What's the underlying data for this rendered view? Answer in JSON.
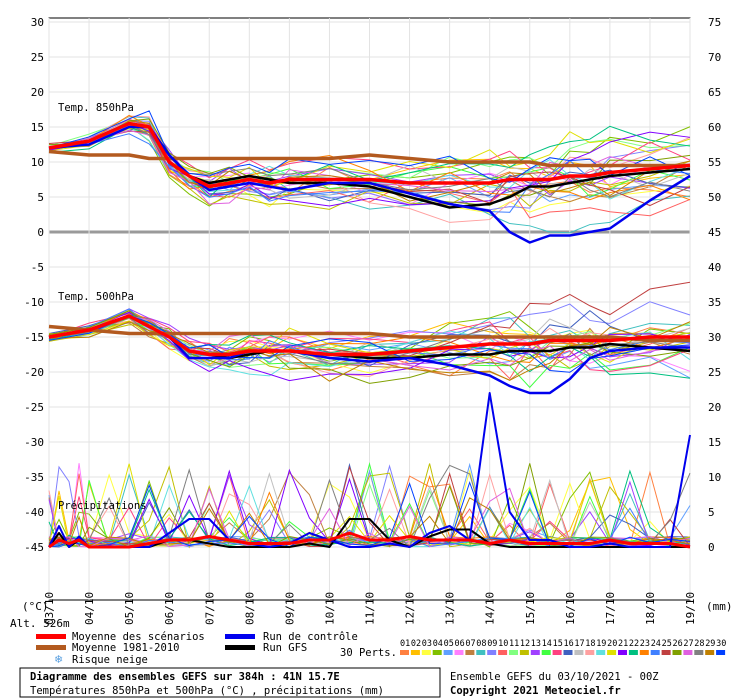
{
  "chart_data": {
    "type": "line",
    "unit_left": "(°C)",
    "unit_right": "(mm)",
    "left_ticks": [
      30,
      25,
      20,
      15,
      10,
      5,
      0,
      -5,
      -10,
      -15,
      -20,
      -25,
      -30,
      -35,
      -40,
      -45
    ],
    "right_ticks": [
      75,
      70,
      65,
      60,
      55,
      50,
      45,
      40,
      35,
      30,
      25,
      20,
      15,
      10,
      5,
      0
    ],
    "left_ylim": [
      -45,
      30
    ],
    "right_ylim": [
      0,
      75
    ],
    "x_range_hours": [
      0,
      384
    ],
    "date_labels": [
      "03/10",
      "04/10",
      "05/10",
      "06/10",
      "07/10",
      "08/10",
      "09/10",
      "10/10",
      "11/10",
      "12/10",
      "13/10",
      "14/10",
      "15/10",
      "16/10",
      "17/10",
      "18/10",
      "19/10"
    ],
    "panel_labels": {
      "t850": "Temp. 850hPa",
      "t500": "Temp. 500hPa",
      "precip": "Précipitations"
    },
    "alt_label": "Alt. 526m",
    "t850": {
      "x_hours": [
        0,
        24,
        48,
        60,
        72,
        84,
        96,
        108,
        120,
        132,
        144,
        168,
        192,
        216,
        240,
        264,
        276,
        288,
        300,
        312,
        324,
        336,
        360,
        384
      ],
      "mean_scenarios": [
        12,
        13,
        15.5,
        15,
        10,
        8,
        6.5,
        7,
        7.5,
        7,
        7.5,
        7.5,
        7.5,
        7,
        7,
        7,
        7.5,
        7.5,
        7.5,
        8,
        8,
        8.5,
        9,
        9.5
      ],
      "mean_1981_2010": [
        11.5,
        11,
        11,
        10.5,
        10.5,
        10.5,
        10.5,
        10.5,
        10.5,
        10.5,
        10.5,
        10.5,
        11,
        10.5,
        10,
        10,
        10,
        10,
        9.5,
        9.5,
        9.5,
        9.5,
        9.5,
        9.5
      ],
      "control_run": [
        12,
        12.5,
        15,
        15,
        11,
        8,
        6,
        6.5,
        7,
        6.5,
        6,
        7,
        7,
        5.5,
        4,
        3,
        0,
        -1.5,
        -0.5,
        -0.5,
        0,
        0.5,
        4.5,
        8
      ],
      "gfs_run": [
        12,
        13,
        15.5,
        15,
        11,
        8,
        7,
        7.5,
        8,
        7.5,
        7,
        7,
        6.5,
        5,
        3.5,
        4,
        5,
        6.5,
        6.5,
        7,
        7.5,
        8,
        8.5,
        9
      ]
    },
    "t500": {
      "x_hours": [
        0,
        24,
        48,
        60,
        72,
        84,
        96,
        108,
        120,
        132,
        144,
        168,
        192,
        216,
        240,
        264,
        276,
        288,
        300,
        312,
        324,
        336,
        360,
        384
      ],
      "mean_scenarios": [
        -15,
        -14,
        -12,
        -13.5,
        -15,
        -17,
        -17.5,
        -17.5,
        -17,
        -17,
        -17,
        -17.5,
        -17.5,
        -17,
        -16.5,
        -16,
        -16,
        -16,
        -15.5,
        -15.5,
        -15.5,
        -15.5,
        -15,
        -15
      ],
      "mean_1981_2010": [
        -13.5,
        -14,
        -14.5,
        -14.5,
        -14.5,
        -14.5,
        -14.5,
        -14.5,
        -14.5,
        -14.5,
        -14.5,
        -14.5,
        -14.5,
        -15,
        -15,
        -15,
        -15,
        -15,
        -15,
        -15,
        -15,
        -15,
        -15.5,
        -15.5
      ],
      "control_run": [
        -15,
        -14,
        -12,
        -13.5,
        -15,
        -18,
        -18,
        -18,
        -17,
        -17,
        -17,
        -18,
        -18.5,
        -18,
        -19,
        -20.5,
        -22,
        -23,
        -23,
        -21,
        -18,
        -17,
        -16.5,
        -16.5
      ],
      "gfs_run": [
        -15,
        -14,
        -12,
        -13.5,
        -15,
        -17,
        -17.5,
        -18,
        -17.5,
        -17,
        -17,
        -17.5,
        -18,
        -18,
        -17.5,
        -17.5,
        -17,
        -17,
        -17,
        -16.5,
        -16.5,
        -16,
        -16.5,
        -17
      ]
    },
    "precip": {
      "x_hours": [
        0,
        6,
        12,
        18,
        24,
        36,
        48,
        60,
        72,
        84,
        96,
        108,
        120,
        132,
        144,
        156,
        168,
        180,
        192,
        204,
        216,
        228,
        240,
        252,
        264,
        276,
        288,
        300,
        312,
        324,
        336,
        348,
        360,
        372,
        384
      ],
      "mean_scenarios": [
        0,
        1,
        0.5,
        1,
        0,
        0,
        0,
        0.5,
        1,
        1,
        1.5,
        1,
        0.5,
        0.5,
        0.5,
        1,
        1,
        2,
        1,
        1,
        1.5,
        1,
        1,
        1,
        0.5,
        1,
        0.5,
        0.5,
        0.5,
        0.5,
        1,
        0.5,
        0.5,
        0.5,
        0
      ],
      "control_run": [
        0,
        3,
        0,
        1.5,
        0,
        0,
        0,
        0,
        2,
        4,
        4,
        1,
        0.5,
        0,
        0.5,
        2,
        1,
        0,
        0,
        0.5,
        0,
        2,
        3,
        1,
        22,
        5,
        1,
        1,
        0,
        0,
        0.5,
        0,
        0,
        0,
        16
      ],
      "gfs_run": [
        0,
        2,
        0,
        1,
        0,
        0,
        0,
        0,
        1,
        1,
        0.5,
        0,
        0,
        0,
        0,
        0.5,
        0,
        4,
        4,
        1,
        0,
        1.5,
        2.5,
        2.5,
        0.5,
        0,
        0,
        0,
        0,
        0,
        0,
        0,
        0,
        0,
        0
      ]
    },
    "legend": {
      "mean_scenarios": "Moyenne des scénarios",
      "mean_1981_2010": "Moyenne 1981-2010",
      "snow_risk": "Risque neige",
      "control_run": "Run de contrôle",
      "gfs_run": "Run GFS",
      "perts_label": "30 Perts.",
      "pert_numbers": [
        "01",
        "02",
        "03",
        "04",
        "05",
        "06",
        "07",
        "08",
        "09",
        "10",
        "11",
        "12",
        "13",
        "14",
        "15",
        "16",
        "17",
        "18",
        "19",
        "20",
        "21",
        "22",
        "23",
        "24",
        "25",
        "26",
        "27",
        "28",
        "29",
        "30"
      ]
    },
    "colors": {
      "mean_scenarios": "#ff0000",
      "mean_1981_2010": "#b35a1f",
      "control_run": "#0000ee",
      "gfs_run": "#000000",
      "snow_icon": "#5aa0e0",
      "perts": [
        "#ff8040",
        "#ffbf00",
        "#ffff40",
        "#80c000",
        "#60a0ff",
        "#ff80ff",
        "#c08040",
        "#40c0c0",
        "#8080ff",
        "#ff6060",
        "#80ff80",
        "#c0c000",
        "#a040ff",
        "#40ff40",
        "#ff4080",
        "#4060c0",
        "#c0c0c0",
        "#ffa0a0",
        "#60e0e0",
        "#e0e000",
        "#8000ff",
        "#00c080",
        "#ff8000",
        "#4080ff",
        "#c04040",
        "#80a000",
        "#e060e0",
        "#808080",
        "#c08000",
        "#0040ff"
      ]
    }
  },
  "footer": {
    "title": "Diagramme des ensembles GEFS sur 384h : 41N 15.7E",
    "subtitle": "Températures 850hPa et 500hPa (°C) , précipitations (mm)",
    "run_info": "Ensemble GEFS du 03/10/2021 - 00Z",
    "copyright": "Copyright 2021 Meteociel.fr"
  }
}
